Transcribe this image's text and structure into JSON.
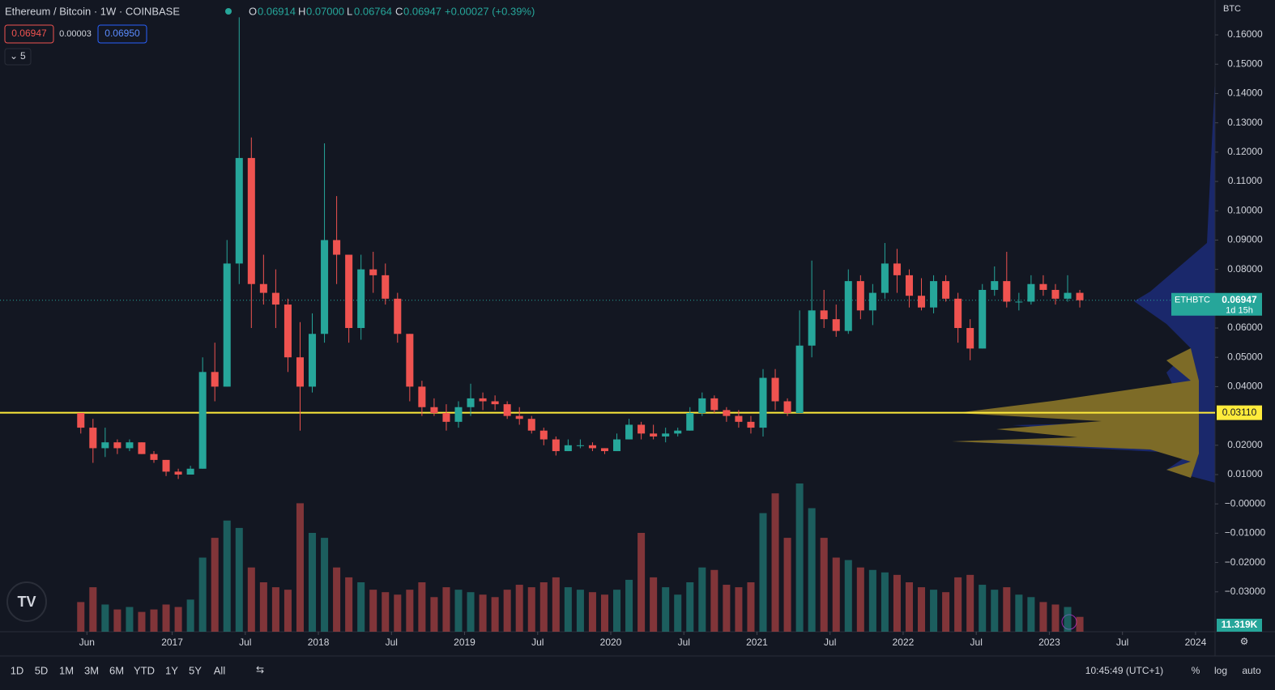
{
  "header": {
    "title": "Ethereum / Bitcoin · 1W · COINBASE",
    "o_label": "O",
    "o": "0.06914",
    "h_label": "H",
    "h": "0.07000",
    "l_label": "L",
    "l": "0.06764",
    "c_label": "C",
    "c": "0.06947",
    "change": "+0.00027 (+0.39%)",
    "sell": "0.06947",
    "spread": "0.00003",
    "buy": "0.06950",
    "indicators": "5"
  },
  "toolbar": {
    "ranges": [
      "1D",
      "5D",
      "1M",
      "3M",
      "6M",
      "YTD",
      "1Y",
      "5Y",
      "All"
    ],
    "clock": "10:45:49 (UTC+1)",
    "percent": "%",
    "log": "log",
    "auto": "auto",
    "currency": "BTC"
  },
  "chart_data": {
    "type": "candlestick",
    "x": [
      "2016-05",
      "2016-06",
      "2016-07",
      "2016-08",
      "2016-09",
      "2016-10",
      "2016-11",
      "2016-12",
      "2017-01",
      "2017-02",
      "2017-03",
      "2017-04",
      "2017-05",
      "2017-06",
      "2017-07",
      "2017-08",
      "2017-09",
      "2017-10",
      "2017-11",
      "2017-12",
      "2018-01",
      "2018-02",
      "2018-03",
      "2018-04",
      "2018-05",
      "2018-06",
      "2018-07",
      "2018-08",
      "2018-09",
      "2018-10",
      "2018-11",
      "2018-12",
      "2019-01",
      "2019-02",
      "2019-03",
      "2019-04",
      "2019-05",
      "2019-06",
      "2019-07",
      "2019-08",
      "2019-09",
      "2019-10",
      "2019-11",
      "2019-12",
      "2020-01",
      "2020-02",
      "2020-03",
      "2020-04",
      "2020-05",
      "2020-06",
      "2020-07",
      "2020-08",
      "2020-09",
      "2020-10",
      "2020-11",
      "2020-12",
      "2021-01",
      "2021-02",
      "2021-03",
      "2021-04",
      "2021-05",
      "2021-06",
      "2021-07",
      "2021-08",
      "2021-09",
      "2021-10",
      "2021-11",
      "2021-12",
      "2022-01",
      "2022-02",
      "2022-03",
      "2022-04",
      "2022-05",
      "2022-06",
      "2022-07",
      "2022-08",
      "2022-09",
      "2022-10",
      "2022-11",
      "2022-12",
      "2023-01",
      "2023-02",
      "2023-03"
    ],
    "open": [
      0.031,
      0.026,
      0.019,
      0.021,
      0.019,
      0.021,
      0.017,
      0.015,
      0.011,
      0.01,
      0.012,
      0.045,
      0.04,
      0.082,
      0.118,
      0.075,
      0.072,
      0.068,
      0.05,
      0.04,
      0.058,
      0.09,
      0.085,
      0.06,
      0.08,
      0.078,
      0.07,
      0.058,
      0.04,
      0.033,
      0.031,
      0.028,
      0.033,
      0.036,
      0.035,
      0.034,
      0.03,
      0.029,
      0.025,
      0.022,
      0.018,
      0.02,
      0.02,
      0.019,
      0.018,
      0.022,
      0.027,
      0.024,
      0.023,
      0.024,
      0.025,
      0.031,
      0.036,
      0.032,
      0.03,
      0.028,
      0.026,
      0.043,
      0.035,
      0.031,
      0.054,
      0.066,
      0.063,
      0.059,
      0.076,
      0.066,
      0.072,
      0.082,
      0.078,
      0.071,
      0.067,
      0.076,
      0.07,
      0.06,
      0.053,
      0.073,
      0.076,
      0.069,
      0.069,
      0.075,
      0.073,
      0.07,
      0.072
    ],
    "high": [
      0.031,
      0.029,
      0.026,
      0.022,
      0.022,
      0.021,
      0.018,
      0.015,
      0.012,
      0.013,
      0.05,
      0.055,
      0.09,
      0.166,
      0.125,
      0.085,
      0.08,
      0.07,
      0.062,
      0.065,
      0.123,
      0.105,
      0.085,
      0.085,
      0.086,
      0.082,
      0.072,
      0.058,
      0.042,
      0.036,
      0.034,
      0.035,
      0.041,
      0.038,
      0.037,
      0.035,
      0.033,
      0.03,
      0.026,
      0.023,
      0.022,
      0.022,
      0.021,
      0.019,
      0.024,
      0.029,
      0.028,
      0.027,
      0.026,
      0.026,
      0.033,
      0.038,
      0.037,
      0.033,
      0.032,
      0.03,
      0.046,
      0.046,
      0.036,
      0.066,
      0.083,
      0.073,
      0.068,
      0.08,
      0.078,
      0.075,
      0.089,
      0.087,
      0.08,
      0.077,
      0.078,
      0.078,
      0.072,
      0.063,
      0.075,
      0.081,
      0.086,
      0.072,
      0.078,
      0.078,
      0.075,
      0.078,
      0.073
    ],
    "low": [
      0.024,
      0.014,
      0.016,
      0.017,
      0.018,
      0.017,
      0.014,
      0.0095,
      0.0085,
      0.01,
      0.012,
      0.035,
      0.04,
      0.075,
      0.06,
      0.068,
      0.06,
      0.045,
      0.025,
      0.038,
      0.055,
      0.075,
      0.055,
      0.056,
      0.072,
      0.068,
      0.055,
      0.035,
      0.03,
      0.03,
      0.025,
      0.026,
      0.03,
      0.032,
      0.032,
      0.029,
      0.027,
      0.024,
      0.02,
      0.0165,
      0.018,
      0.019,
      0.018,
      0.017,
      0.018,
      0.022,
      0.022,
      0.022,
      0.021,
      0.023,
      0.025,
      0.03,
      0.031,
      0.028,
      0.026,
      0.024,
      0.023,
      0.032,
      0.03,
      0.031,
      0.05,
      0.06,
      0.057,
      0.058,
      0.063,
      0.061,
      0.07,
      0.072,
      0.067,
      0.066,
      0.065,
      0.069,
      0.055,
      0.049,
      0.053,
      0.071,
      0.067,
      0.066,
      0.068,
      0.071,
      0.068,
      0.069,
      0.067
    ],
    "close": [
      0.026,
      0.019,
      0.021,
      0.019,
      0.021,
      0.017,
      0.015,
      0.011,
      0.01,
      0.012,
      0.045,
      0.04,
      0.082,
      0.118,
      0.075,
      0.072,
      0.068,
      0.05,
      0.04,
      0.058,
      0.09,
      0.085,
      0.06,
      0.08,
      0.078,
      0.07,
      0.058,
      0.04,
      0.033,
      0.031,
      0.028,
      0.033,
      0.036,
      0.035,
      0.034,
      0.03,
      0.029,
      0.025,
      0.022,
      0.018,
      0.02,
      0.02,
      0.019,
      0.018,
      0.022,
      0.027,
      0.024,
      0.023,
      0.024,
      0.025,
      0.031,
      0.036,
      0.032,
      0.03,
      0.028,
      0.026,
      0.043,
      0.035,
      0.031,
      0.054,
      0.066,
      0.063,
      0.059,
      0.076,
      0.066,
      0.072,
      0.082,
      0.078,
      0.071,
      0.067,
      0.076,
      0.07,
      0.06,
      0.053,
      0.073,
      0.076,
      0.069,
      0.069,
      0.075,
      0.073,
      0.07,
      0.072,
      0.06947
    ],
    "volume": [
      120,
      180,
      110,
      90,
      100,
      80,
      90,
      110,
      100,
      130,
      300,
      380,
      450,
      420,
      260,
      200,
      180,
      170,
      520,
      400,
      380,
      260,
      220,
      200,
      170,
      160,
      150,
      170,
      200,
      140,
      180,
      170,
      160,
      150,
      140,
      170,
      190,
      180,
      200,
      220,
      180,
      170,
      160,
      150,
      170,
      210,
      400,
      220,
      180,
      150,
      200,
      260,
      250,
      190,
      180,
      200,
      480,
      560,
      380,
      600,
      500,
      380,
      300,
      290,
      260,
      250,
      240,
      230,
      200,
      180,
      170,
      160,
      220,
      230,
      190,
      170,
      180,
      150,
      140,
      120,
      110,
      100,
      60
    ],
    "volume_label": "11.319K",
    "colors": {
      "up": "#26a69a",
      "down": "#ef5350"
    },
    "xlim": [
      "2015-11",
      "2024-03"
    ],
    "xticks": [
      {
        "value": "2016-06",
        "label": "Jun"
      },
      {
        "value": "2017-01",
        "label": "2017"
      },
      {
        "value": "2017-07",
        "label": "Jul"
      },
      {
        "value": "2018-01",
        "label": "2018"
      },
      {
        "value": "2018-07",
        "label": "Jul"
      },
      {
        "value": "2019-01",
        "label": "2019"
      },
      {
        "value": "2019-07",
        "label": "Jul"
      },
      {
        "value": "2020-01",
        "label": "2020"
      },
      {
        "value": "2020-07",
        "label": "Jul"
      },
      {
        "value": "2021-01",
        "label": "2021"
      },
      {
        "value": "2021-07",
        "label": "Jul"
      },
      {
        "value": "2022-01",
        "label": "2022"
      },
      {
        "value": "2022-07",
        "label": "Jul"
      },
      {
        "value": "2023-01",
        "label": "2023"
      },
      {
        "value": "2023-07",
        "label": "Jul"
      },
      {
        "value": "2024-01",
        "label": "2024"
      }
    ],
    "ylim": [
      -0.0436,
      0.1719
    ],
    "yticks": [
      {
        "value": 0.16,
        "label": "0.16000"
      },
      {
        "value": 0.15,
        "label": "0.15000"
      },
      {
        "value": 0.14,
        "label": "0.14000"
      },
      {
        "value": 0.13,
        "label": "0.13000"
      },
      {
        "value": 0.12,
        "label": "0.12000"
      },
      {
        "value": 0.11,
        "label": "0.11000"
      },
      {
        "value": 0.1,
        "label": "0.10000"
      },
      {
        "value": 0.09,
        "label": "0.09000"
      },
      {
        "value": 0.08,
        "label": "0.08000"
      },
      {
        "value": 0.06,
        "label": "0.06000"
      },
      {
        "value": 0.05,
        "label": "0.05000"
      },
      {
        "value": 0.04,
        "label": "0.04000"
      },
      {
        "value": 0.02,
        "label": "0.02000"
      },
      {
        "value": 0.01,
        "label": "0.01000"
      },
      {
        "value": 0,
        "label": "−0.00000"
      },
      {
        "value": -0.01,
        "label": "−0.01000"
      },
      {
        "value": -0.02,
        "label": "−0.02000"
      },
      {
        "value": -0.03,
        "label": "−0.03000"
      }
    ],
    "hline": {
      "value": 0.0311,
      "label": "0.03110",
      "color": "#ffeb3b"
    },
    "last_price": {
      "value": 0.06947,
      "label": "0.06947",
      "symbol": "ETHBTC",
      "countdown": "1d 15h"
    }
  }
}
